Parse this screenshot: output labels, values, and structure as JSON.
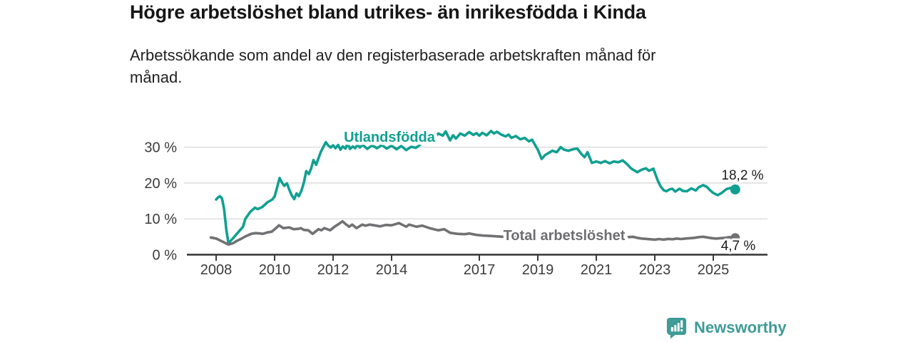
{
  "header": {
    "title": "Högre arbetslöshet bland utrikes- än inrikesfödda i Kinda",
    "subtitle": "Arbetssökande som andel av den registerbaserade arbetskraften månad för månad."
  },
  "footer": {
    "brand": "Newsworthy"
  },
  "colors": {
    "accent_teal": "#10A091",
    "neutral_gray": "#717174",
    "axis": "#3b3b3b",
    "grid": "#d9d9d9",
    "brand_teal": "#3E9B97",
    "value_label": "#1a1a1a"
  },
  "chart_data": {
    "type": "line",
    "title": "Högre arbetslöshet bland utrikes- än inrikesfödda i Kinda",
    "subtitle": "Arbetssökande som andel av den registerbaserade arbetskraften månad för månad.",
    "xlabel": "",
    "ylabel": "",
    "ylim": [
      0,
      36
    ],
    "xlim": [
      2007.6,
      2026.3
    ],
    "grid": "horizontal",
    "legend_position": "inline-labels",
    "y_ticks": [
      {
        "value": 0,
        "label": "0 %"
      },
      {
        "value": 10,
        "label": "10 %"
      },
      {
        "value": 20,
        "label": "20 %"
      },
      {
        "value": 30,
        "label": "30 %"
      }
    ],
    "x_ticks": [
      {
        "year": 2008,
        "label": "2008"
      },
      {
        "year": 2010,
        "label": "2010"
      },
      {
        "year": 2012,
        "label": "2012"
      },
      {
        "year": 2014,
        "label": "2014"
      },
      {
        "year": 2017,
        "label": "2017"
      },
      {
        "year": 2019,
        "label": "2019"
      },
      {
        "year": 2021,
        "label": "2021"
      },
      {
        "year": 2023,
        "label": "2023"
      },
      {
        "year": 2025,
        "label": "2025"
      }
    ],
    "series": [
      {
        "name": "Utlandsfödda",
        "color": "#10A091",
        "end_label": "18,2 %",
        "end_value": 18.2,
        "points": [
          [
            2008.0,
            15.4
          ],
          [
            2008.06,
            15.9
          ],
          [
            2008.13,
            16.3
          ],
          [
            2008.2,
            15.7
          ],
          [
            2008.27,
            12.8
          ],
          [
            2008.35,
            7.0
          ],
          [
            2008.42,
            3.2
          ],
          [
            2008.5,
            3.9
          ],
          [
            2008.58,
            4.6
          ],
          [
            2008.75,
            6.2
          ],
          [
            2008.92,
            7.8
          ],
          [
            2009.0,
            10.0
          ],
          [
            2009.17,
            12.0
          ],
          [
            2009.33,
            13.1
          ],
          [
            2009.42,
            12.7
          ],
          [
            2009.58,
            13.3
          ],
          [
            2009.75,
            14.6
          ],
          [
            2009.92,
            15.4
          ],
          [
            2010.0,
            16.2
          ],
          [
            2010.08,
            18.6
          ],
          [
            2010.17,
            21.4
          ],
          [
            2010.25,
            20.1
          ],
          [
            2010.33,
            19.2
          ],
          [
            2010.42,
            19.9
          ],
          [
            2010.5,
            18.2
          ],
          [
            2010.58,
            16.6
          ],
          [
            2010.67,
            15.5
          ],
          [
            2010.75,
            17.1
          ],
          [
            2010.83,
            16.3
          ],
          [
            2010.92,
            17.9
          ],
          [
            2011.0,
            20.1
          ],
          [
            2011.08,
            23.3
          ],
          [
            2011.17,
            22.5
          ],
          [
            2011.25,
            24.1
          ],
          [
            2011.33,
            26.4
          ],
          [
            2011.42,
            25.1
          ],
          [
            2011.5,
            26.9
          ],
          [
            2011.58,
            28.7
          ],
          [
            2011.67,
            30.1
          ],
          [
            2011.75,
            31.4
          ],
          [
            2011.83,
            30.5
          ],
          [
            2011.92,
            29.9
          ],
          [
            2012.0,
            30.5
          ],
          [
            2012.08,
            29.7
          ],
          [
            2012.17,
            30.6
          ],
          [
            2012.25,
            29.3
          ],
          [
            2012.33,
            30.2
          ],
          [
            2012.42,
            29.6
          ],
          [
            2012.5,
            31.0
          ],
          [
            2012.58,
            29.5
          ],
          [
            2012.67,
            30.2
          ],
          [
            2012.75,
            29.7
          ],
          [
            2012.83,
            30.6
          ],
          [
            2012.92,
            29.9
          ],
          [
            2013.0,
            30.7
          ],
          [
            2013.17,
            29.5
          ],
          [
            2013.33,
            30.5
          ],
          [
            2013.5,
            29.7
          ],
          [
            2013.67,
            30.6
          ],
          [
            2013.83,
            29.6
          ],
          [
            2014.0,
            30.4
          ],
          [
            2014.17,
            29.4
          ],
          [
            2014.33,
            30.3
          ],
          [
            2014.5,
            29.2
          ],
          [
            2014.67,
            30.1
          ],
          [
            2014.83,
            29.8
          ],
          [
            2015.0,
            30.8
          ],
          [
            2015.1,
            31.8
          ],
          [
            2015.2,
            32.6
          ],
          [
            2015.35,
            33.6
          ],
          [
            2015.5,
            33.0
          ],
          [
            2015.6,
            33.8
          ],
          [
            2015.75,
            33.2
          ],
          [
            2015.85,
            34.4
          ],
          [
            2016.0,
            31.9
          ],
          [
            2016.1,
            33.3
          ],
          [
            2016.2,
            32.4
          ],
          [
            2016.35,
            33.8
          ],
          [
            2016.5,
            33.2
          ],
          [
            2016.65,
            34.2
          ],
          [
            2016.8,
            33.4
          ],
          [
            2016.9,
            33.9
          ],
          [
            2017.0,
            33.2
          ],
          [
            2017.1,
            34.0
          ],
          [
            2017.25,
            33.3
          ],
          [
            2017.4,
            34.5
          ],
          [
            2017.5,
            33.8
          ],
          [
            2017.6,
            34.3
          ],
          [
            2017.75,
            33.5
          ],
          [
            2017.9,
            33.0
          ],
          [
            2018.0,
            33.5
          ],
          [
            2018.1,
            32.6
          ],
          [
            2018.25,
            33.1
          ],
          [
            2018.4,
            32.2
          ],
          [
            2018.55,
            32.6
          ],
          [
            2018.7,
            31.6
          ],
          [
            2018.8,
            32.1
          ],
          [
            2019.0,
            29.3
          ],
          [
            2019.13,
            26.7
          ],
          [
            2019.25,
            27.8
          ],
          [
            2019.35,
            28.3
          ],
          [
            2019.5,
            29.0
          ],
          [
            2019.65,
            28.6
          ],
          [
            2019.78,
            30.0
          ],
          [
            2019.9,
            29.3
          ],
          [
            2020.05,
            29.0
          ],
          [
            2020.2,
            29.4
          ],
          [
            2020.35,
            29.6
          ],
          [
            2020.5,
            28.0
          ],
          [
            2020.6,
            27.2
          ],
          [
            2020.7,
            28.6
          ],
          [
            2020.85,
            25.6
          ],
          [
            2021.0,
            26.0
          ],
          [
            2021.15,
            25.6
          ],
          [
            2021.3,
            26.1
          ],
          [
            2021.45,
            25.5
          ],
          [
            2021.6,
            26.0
          ],
          [
            2021.75,
            25.8
          ],
          [
            2021.9,
            26.3
          ],
          [
            2022.05,
            25.3
          ],
          [
            2022.2,
            24.0
          ],
          [
            2022.4,
            23.0
          ],
          [
            2022.55,
            23.7
          ],
          [
            2022.7,
            24.1
          ],
          [
            2022.8,
            23.4
          ],
          [
            2022.95,
            24.0
          ],
          [
            2023.1,
            20.7
          ],
          [
            2023.2,
            19.0
          ],
          [
            2023.3,
            18.0
          ],
          [
            2023.4,
            17.7
          ],
          [
            2023.5,
            18.2
          ],
          [
            2023.6,
            18.4
          ],
          [
            2023.7,
            17.6
          ],
          [
            2023.85,
            18.4
          ],
          [
            2023.95,
            17.8
          ],
          [
            2024.1,
            17.7
          ],
          [
            2024.25,
            18.5
          ],
          [
            2024.4,
            17.9
          ],
          [
            2024.5,
            18.8
          ],
          [
            2024.65,
            19.4
          ],
          [
            2024.78,
            18.9
          ],
          [
            2024.9,
            17.9
          ],
          [
            2025.0,
            17.2
          ],
          [
            2025.15,
            16.6
          ],
          [
            2025.3,
            17.3
          ],
          [
            2025.45,
            18.3
          ],
          [
            2025.58,
            18.6
          ],
          [
            2025.75,
            18.2
          ]
        ]
      },
      {
        "name": "Total arbetslöshet",
        "color": "#717174",
        "end_label": "4,7 %",
        "end_value": 4.7,
        "points": [
          [
            2007.82,
            4.8
          ],
          [
            2008.0,
            4.5
          ],
          [
            2008.1,
            4.1
          ],
          [
            2008.25,
            3.5
          ],
          [
            2008.42,
            2.8
          ],
          [
            2008.58,
            3.2
          ],
          [
            2008.7,
            3.8
          ],
          [
            2008.85,
            4.4
          ],
          [
            2009.0,
            5.1
          ],
          [
            2009.2,
            5.8
          ],
          [
            2009.35,
            6.0
          ],
          [
            2009.5,
            5.9
          ],
          [
            2009.6,
            5.8
          ],
          [
            2009.75,
            6.2
          ],
          [
            2009.9,
            6.4
          ],
          [
            2010.05,
            7.4
          ],
          [
            2010.15,
            8.2
          ],
          [
            2010.3,
            7.4
          ],
          [
            2010.5,
            7.6
          ],
          [
            2010.65,
            7.1
          ],
          [
            2010.8,
            7.2
          ],
          [
            2010.9,
            7.4
          ],
          [
            2011.0,
            6.9
          ],
          [
            2011.15,
            6.8
          ],
          [
            2011.3,
            5.8
          ],
          [
            2011.5,
            7.1
          ],
          [
            2011.6,
            6.8
          ],
          [
            2011.7,
            7.4
          ],
          [
            2011.9,
            6.8
          ],
          [
            2012.05,
            7.8
          ],
          [
            2012.2,
            8.6
          ],
          [
            2012.32,
            9.3
          ],
          [
            2012.45,
            8.4
          ],
          [
            2012.55,
            7.8
          ],
          [
            2012.65,
            8.4
          ],
          [
            2012.8,
            7.4
          ],
          [
            2013.0,
            8.4
          ],
          [
            2013.1,
            8.1
          ],
          [
            2013.25,
            8.4
          ],
          [
            2013.4,
            8.2
          ],
          [
            2013.6,
            7.9
          ],
          [
            2013.8,
            8.3
          ],
          [
            2014.0,
            8.2
          ],
          [
            2014.25,
            8.8
          ],
          [
            2014.5,
            7.8
          ],
          [
            2014.6,
            8.4
          ],
          [
            2014.85,
            7.8
          ],
          [
            2015.05,
            8.1
          ],
          [
            2015.3,
            7.4
          ],
          [
            2015.45,
            7.1
          ],
          [
            2015.6,
            6.8
          ],
          [
            2015.8,
            7.1
          ],
          [
            2016.0,
            6.1
          ],
          [
            2016.25,
            5.8
          ],
          [
            2016.5,
            5.7
          ],
          [
            2016.65,
            5.9
          ],
          [
            2016.9,
            5.5
          ],
          [
            2017.15,
            5.3
          ],
          [
            2017.4,
            5.2
          ],
          [
            2017.8,
            5.0
          ],
          [
            2018.3,
            4.9
          ],
          [
            2018.8,
            4.8
          ],
          [
            2019.3,
            4.8
          ],
          [
            2019.8,
            4.9
          ],
          [
            2020.3,
            5.0
          ],
          [
            2020.8,
            4.8
          ],
          [
            2021.3,
            4.6
          ],
          [
            2021.7,
            4.5
          ],
          [
            2021.95,
            4.6
          ],
          [
            2022.1,
            4.9
          ],
          [
            2022.25,
            5.0
          ],
          [
            2022.4,
            4.7
          ],
          [
            2022.55,
            4.5
          ],
          [
            2022.7,
            4.4
          ],
          [
            2022.85,
            4.3
          ],
          [
            2023.0,
            4.2
          ],
          [
            2023.15,
            4.35
          ],
          [
            2023.3,
            4.2
          ],
          [
            2023.45,
            4.4
          ],
          [
            2023.6,
            4.3
          ],
          [
            2023.75,
            4.5
          ],
          [
            2023.9,
            4.35
          ],
          [
            2024.05,
            4.5
          ],
          [
            2024.2,
            4.6
          ],
          [
            2024.35,
            4.7
          ],
          [
            2024.5,
            4.9
          ],
          [
            2024.65,
            5.0
          ],
          [
            2024.8,
            4.8
          ],
          [
            2024.95,
            4.6
          ],
          [
            2025.1,
            4.5
          ],
          [
            2025.25,
            4.6
          ],
          [
            2025.4,
            4.7
          ],
          [
            2025.55,
            4.9
          ],
          [
            2025.75,
            4.7
          ]
        ]
      }
    ]
  }
}
